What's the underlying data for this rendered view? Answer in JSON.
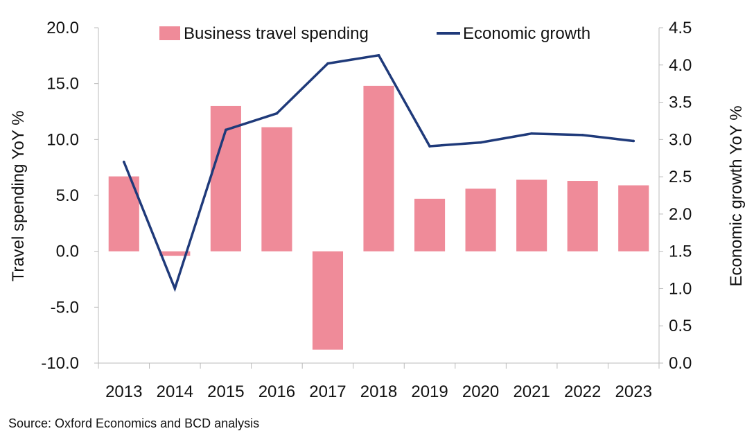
{
  "chart_data": {
    "type": "bar",
    "categories": [
      "2013",
      "2014",
      "2015",
      "2016",
      "2017",
      "2018",
      "2019",
      "2020",
      "2021",
      "2022",
      "2023"
    ],
    "series": [
      {
        "name": "Business travel spending",
        "type": "bar",
        "axis": "left",
        "color": "#ef8b99",
        "values": [
          6.7,
          -0.4,
          13.0,
          11.1,
          -8.8,
          14.8,
          4.7,
          5.6,
          6.4,
          6.3,
          5.9
        ]
      },
      {
        "name": "Economic growth",
        "type": "line",
        "axis": "right",
        "color": "#1f3a7a",
        "values": [
          2.7,
          1.0,
          3.13,
          3.35,
          4.02,
          4.13,
          2.91,
          2.96,
          3.08,
          3.06,
          2.98
        ]
      }
    ],
    "ylabel": "Travel spending YoY %",
    "ylabel_right": "Economic growth YoY %",
    "ylim": [
      -10,
      20
    ],
    "ylim_right": [
      0,
      4.5
    ],
    "yticks": [
      "20.0",
      "15.0",
      "10.0",
      "5.0",
      "0.0",
      "-5.0",
      "-10.0"
    ],
    "yticks_right": [
      "4.5",
      "4.0",
      "3.5",
      "3.0",
      "2.5",
      "2.0",
      "1.5",
      "1.0",
      "0.5",
      "0.0"
    ],
    "legend_position": "top",
    "grid": false,
    "source": "Source: Oxford Economics and BCD analysis"
  }
}
